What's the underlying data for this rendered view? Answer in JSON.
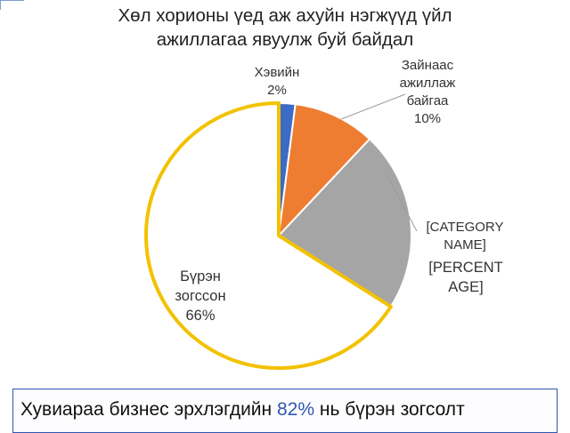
{
  "chart_data": {
    "type": "pie",
    "title_lines": [
      "Хөл хорионы үед аж ахуйн нэгжүүд үйл",
      "ажиллагаа явуулж буй байдал"
    ],
    "slices": [
      {
        "label_lines": [
          "Хэвийн"
        ],
        "percent_text": "2%",
        "value": 2,
        "color": "#3b6bc4"
      },
      {
        "label_lines": [
          "Зайнаас",
          "ажиллаж",
          "байгаа"
        ],
        "percent_text": "10%",
        "value": 10,
        "color": "#ee7d31"
      },
      {
        "label_lines": [
          "[CATEGORY",
          "NAME]"
        ],
        "percent_text_lines": [
          "[PERCENT",
          "AGE]"
        ],
        "value": 22,
        "color": "#a5a5a5"
      },
      {
        "label_lines": [
          "Бүрэн",
          "зогссон"
        ],
        "percent_text": "66%",
        "value": 66,
        "color": "#ffffff",
        "stroke": "#f2c200"
      }
    ]
  },
  "footer": {
    "text_before": "Хувиараа бизнес эрхлэгдийн",
    "highlight": "82%",
    "text_after": "нь бүрэн зогсолт"
  }
}
